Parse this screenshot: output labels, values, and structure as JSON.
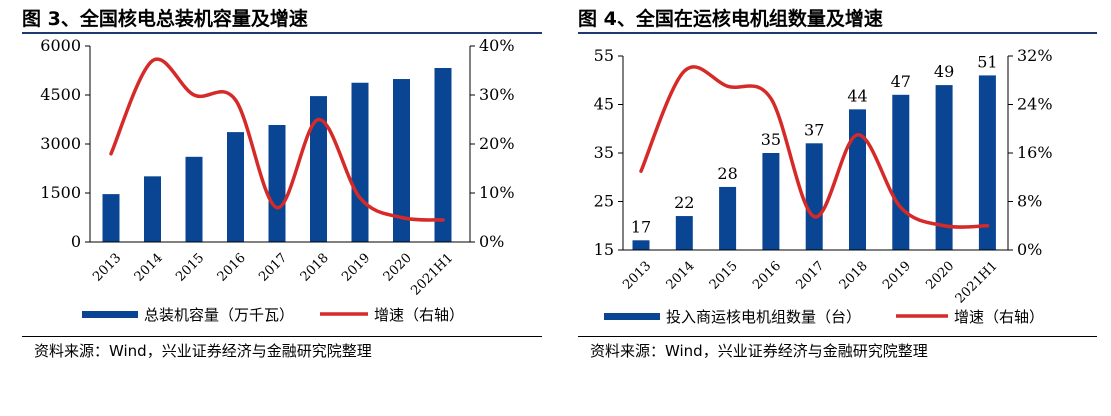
{
  "chart_data": [
    {
      "type": "bar",
      "title": "图 3、全国核电总装机容量及增速",
      "categories": [
        "2013",
        "2014",
        "2015",
        "2016",
        "2017",
        "2018",
        "2019",
        "2020",
        "2021H1"
      ],
      "series": [
        {
          "name": "总装机容量（万千瓦）",
          "type": "bar",
          "axis": "left",
          "color": "#0a4594",
          "values": [
            1466,
            2010,
            2608,
            3364,
            3582,
            4466,
            4875,
            4989,
            5327
          ]
        },
        {
          "name": "增速（右轴）",
          "type": "line",
          "axis": "right",
          "color": "#d62a28",
          "values": [
            0.18,
            0.37,
            0.3,
            0.29,
            0.07,
            0.25,
            0.09,
            0.05,
            0.045
          ]
        }
      ],
      "ylim_left": [
        0,
        6000
      ],
      "yticks_left": [
        "0",
        "1500",
        "3000",
        "4500",
        "6000"
      ],
      "yticks_left_values": [
        0,
        1500,
        3000,
        4500,
        6000
      ],
      "ylim_right": [
        0,
        0.4
      ],
      "yticks_right": [
        "0%",
        "10%",
        "20%",
        "30%",
        "40%"
      ],
      "yticks_right_values": [
        0,
        0.1,
        0.2,
        0.3,
        0.4
      ],
      "legend": "bottom",
      "grid": false,
      "source": "资料来源：Wind，兴业证券经济与金融研究院整理"
    },
    {
      "type": "bar",
      "title": "图 4、全国在运核电机组数量及增速",
      "categories": [
        "2013",
        "2014",
        "2015",
        "2016",
        "2017",
        "2018",
        "2019",
        "2020",
        "2021H1"
      ],
      "series": [
        {
          "name": "投入商运核电机组数量（台）",
          "type": "bar",
          "axis": "left",
          "color": "#0a4594",
          "values": [
            17,
            22,
            28,
            35,
            37,
            44,
            47,
            49,
            51
          ],
          "labels": [
            "17",
            "22",
            "28",
            "35",
            "37",
            "44",
            "47",
            "49",
            "51"
          ]
        },
        {
          "name": "增速（右轴）",
          "type": "line",
          "axis": "right",
          "color": "#d62a28",
          "values": [
            0.13,
            0.295,
            0.27,
            0.25,
            0.055,
            0.19,
            0.07,
            0.04,
            0.04
          ]
        }
      ],
      "ylim_left": [
        15,
        55
      ],
      "yticks_left": [
        "15",
        "25",
        "35",
        "45",
        "55"
      ],
      "yticks_left_values": [
        15,
        25,
        35,
        45,
        55
      ],
      "ylim_right": [
        0,
        0.32
      ],
      "yticks_right": [
        "0%",
        "8%",
        "16%",
        "24%",
        "32%"
      ],
      "yticks_right_values": [
        0,
        0.08,
        0.16,
        0.24,
        0.32
      ],
      "legend": "bottom",
      "grid": false,
      "source": "资料来源：Wind，兴业证券经济与金融研究院整理"
    }
  ]
}
